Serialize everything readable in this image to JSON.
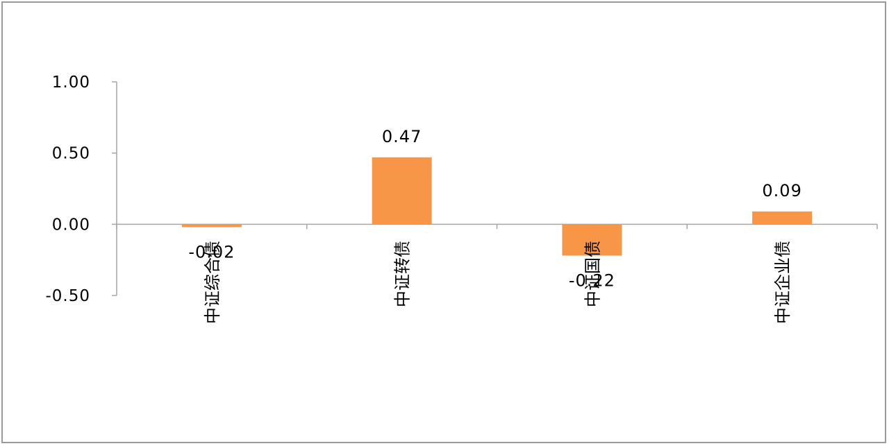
{
  "chart_data": {
    "type": "bar",
    "categories": [
      "中证综合债",
      "中证转债",
      "中证国债",
      "中证企业债"
    ],
    "values": [
      -0.02,
      0.47,
      -0.22,
      0.09
    ],
    "data_labels": [
      "-0.02",
      "0.47",
      "-0.22",
      "0.09"
    ],
    "y_ticks": [
      "1.00",
      "0.50",
      "0.00",
      "-0.50"
    ],
    "ylim": [
      -0.5,
      1.0
    ],
    "bar_color": "#F79646",
    "axis_color": "#a6a6a6",
    "grid": false,
    "legend": "none",
    "title": "",
    "xlabel": "",
    "ylabel": ""
  }
}
